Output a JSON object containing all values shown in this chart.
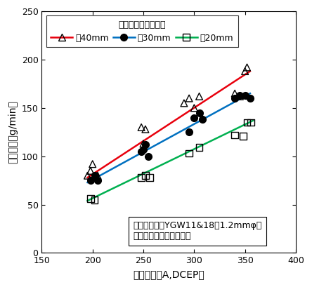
{
  "title": "",
  "xlabel": "溶接電流（A,DCEP）",
  "ylabel": "溶着速度（g/min）",
  "xlim": [
    150,
    400
  ],
  "ylim": [
    0,
    250
  ],
  "xticks": [
    150,
    200,
    250,
    300,
    350,
    400
  ],
  "yticks": [
    0,
    50,
    100,
    150,
    200,
    250
  ],
  "legend_title": "チップー母材間距離",
  "annotation_line1": "供試ワイヤ：YGW11&18（1.2mmφ）",
  "annotation_line2": "シールドガス：炭酸ガス",
  "series": [
    {
      "label": "：40mm",
      "marker": "^",
      "marker_color": "none",
      "marker_edgecolor": "black",
      "line_color": "#e8000d",
      "scatter_x": [
        195,
        198,
        200,
        205,
        248,
        250,
        252,
        290,
        295,
        300,
        305,
        340,
        345,
        350,
        352
      ],
      "scatter_y": [
        80,
        85,
        92,
        80,
        130,
        113,
        128,
        155,
        160,
        150,
        162,
        165,
        162,
        188,
        192
      ],
      "fit_x": [
        195,
        355
      ],
      "fit_y": [
        78,
        188
      ]
    },
    {
      "label": "：30mm",
      "marker": "o",
      "marker_color": "black",
      "marker_edgecolor": "black",
      "line_color": "#0070c0",
      "scatter_x": [
        198,
        202,
        205,
        248,
        250,
        252,
        255,
        295,
        300,
        305,
        308,
        340,
        345,
        350,
        355
      ],
      "scatter_y": [
        75,
        80,
        75,
        105,
        107,
        112,
        100,
        125,
        140,
        145,
        138,
        160,
        163,
        163,
        160
      ],
      "fit_x": [
        195,
        355
      ],
      "fit_y": [
        73,
        165
      ]
    },
    {
      "label": "：20mm",
      "marker": "s",
      "marker_color": "none",
      "marker_edgecolor": "black",
      "line_color": "#00b050",
      "scatter_x": [
        198,
        202,
        248,
        252,
        256,
        295,
        305,
        340,
        348,
        352,
        356
      ],
      "scatter_y": [
        56,
        55,
        78,
        80,
        78,
        103,
        109,
        122,
        121,
        135,
        135
      ],
      "fit_x": [
        195,
        358
      ],
      "fit_y": [
        54,
        137
      ]
    }
  ],
  "background_color": "#ffffff",
  "fontsize": 10,
  "marker_size": 7
}
